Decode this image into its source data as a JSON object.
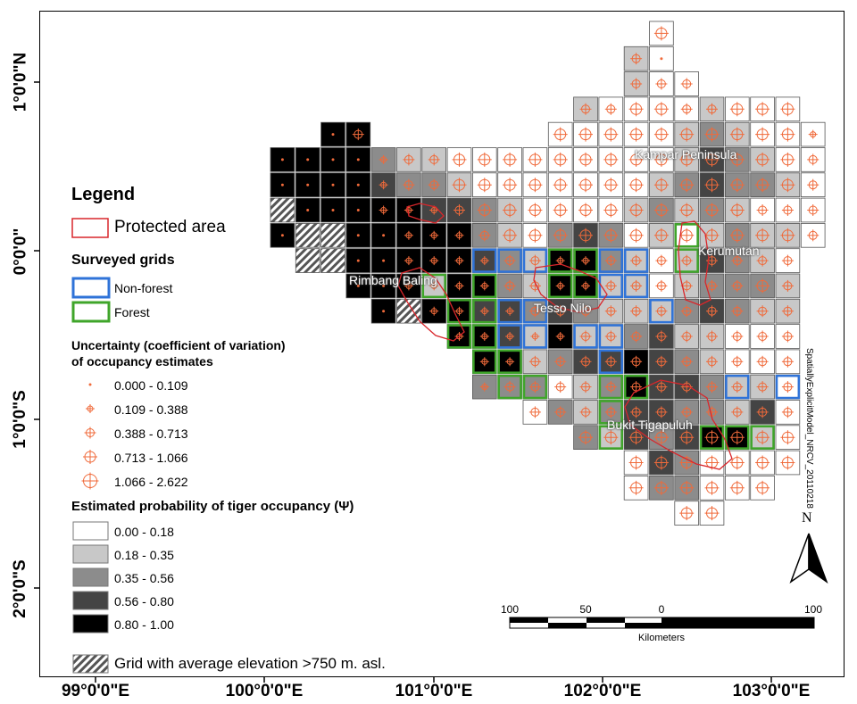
{
  "map": {
    "lat_labels": [
      "1°0'0\"N",
      "0°0'0\"",
      "1°0'0\"S",
      "2°0'0\"S"
    ],
    "lon_labels": [
      "99°0'0\"E",
      "100°0'0\"E",
      "101°0'0\"E",
      "102°0'0\"E",
      "103°0'0\"E"
    ],
    "place_labels": {
      "kampar": "Kampar Peninsula",
      "kerumutan": "Kerumutan",
      "rimbang": "Rimbang Baling",
      "tesso": "Tesso Nilo",
      "bukit": "Bukit Tigapuluh"
    },
    "side_note": "SpatiallyExplicitModel_NRCV_20110218",
    "north_label": "N",
    "scale": {
      "labels": [
        "100",
        "50",
        "0",
        "100"
      ],
      "unit": "Kilometers"
    }
  },
  "legend": {
    "title": "Legend",
    "protected_area": "Protected area",
    "surveyed_heading": "Surveyed grids",
    "non_forest": "Non-forest",
    "forest": "Forest",
    "uncertainty_heading_1": "Uncertainty (coefficient of variation)",
    "uncertainty_heading_2": "of occupancy estimates",
    "uncertainty_classes": [
      "0.000 - 0.109",
      "0.109 - 0.388",
      "0.388 - 0.713",
      "0.713 - 1.066",
      "1.066 - 2.622"
    ],
    "occupancy_heading": "Estimated probability of tiger occupancy (Ψ)",
    "occupancy_classes": [
      "0.00 - 0.18",
      "0.18 - 0.35",
      "0.35 - 0.56",
      "0.56 - 0.80",
      "0.80 - 1.00"
    ],
    "elevation": "Grid with average elevation >750 m. asl."
  },
  "colors": {
    "occupancy": [
      "#ffffff",
      "#c8c8c8",
      "#8c8c8c",
      "#444444",
      "#000000"
    ],
    "protected": "#d9262b",
    "non_forest": "#2f73d8",
    "forest": "#3fa52a",
    "marker": "#f06a3a"
  }
}
